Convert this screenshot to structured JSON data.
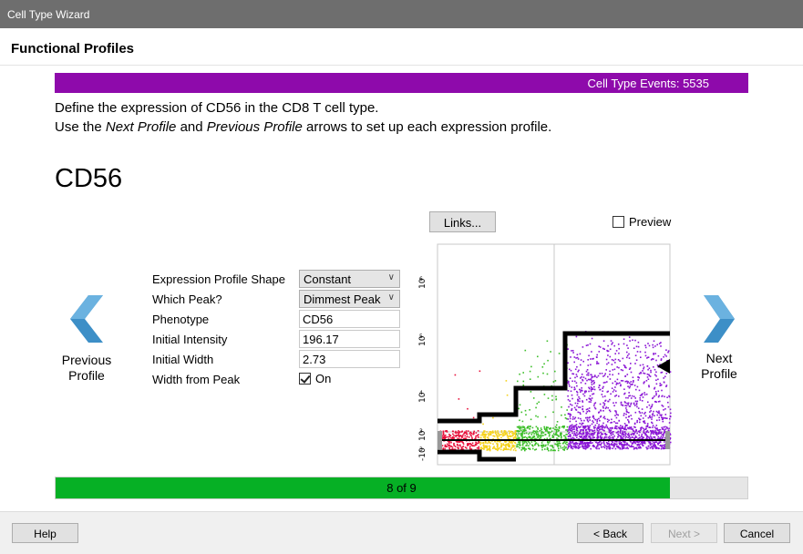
{
  "window": {
    "title": "Cell Type Wizard"
  },
  "header": {
    "title": "Functional Profiles"
  },
  "events": {
    "label": "Cell Type Events: 5535"
  },
  "instructions": {
    "line1": "Define the expression of CD56 in the CD8 T cell type.",
    "line2_prefix": "Use the ",
    "line2_next": "Next Profile",
    "line2_mid": " and ",
    "line2_prev": "Previous Profile",
    "line2_suffix": " arrows to set up each expression profile."
  },
  "marker": {
    "name": "CD56"
  },
  "links_button": "Links...",
  "preview": {
    "label": "Preview",
    "checked": false
  },
  "nav": {
    "previous_line1": "Previous",
    "previous_line2": "Profile",
    "next_line1": "Next",
    "next_line2": "Profile",
    "arrow_icon": "chevron-arrow-icon",
    "arrow_color": "#3d8fc7"
  },
  "form": {
    "shape_label": "Expression Profile Shape",
    "shape_value": "Constant",
    "peak_label": "Which Peak?",
    "peak_value": "Dimmest Peak",
    "phenotype_label": "Phenotype",
    "phenotype_value": "CD56",
    "intensity_label": "Initial Intensity",
    "intensity_value": "196.17",
    "width_label": "Initial Width",
    "width_value": "2.73",
    "width_from_peak_label": "Width from Peak",
    "width_from_peak_toggle": "On",
    "width_from_peak_checked": true
  },
  "plot": {
    "y_ticks": [
      "10^6",
      "10^5",
      "10^4",
      "10^3",
      "-10^3"
    ],
    "population_colors": [
      "#e8103a",
      "#f5d21a",
      "#3dbf2a",
      "#8b17d6"
    ]
  },
  "progress": {
    "label": "8 of 9",
    "value": 0.888
  },
  "footer": {
    "help": "Help",
    "back": "< Back",
    "next": "Next >",
    "cancel": "Cancel"
  }
}
